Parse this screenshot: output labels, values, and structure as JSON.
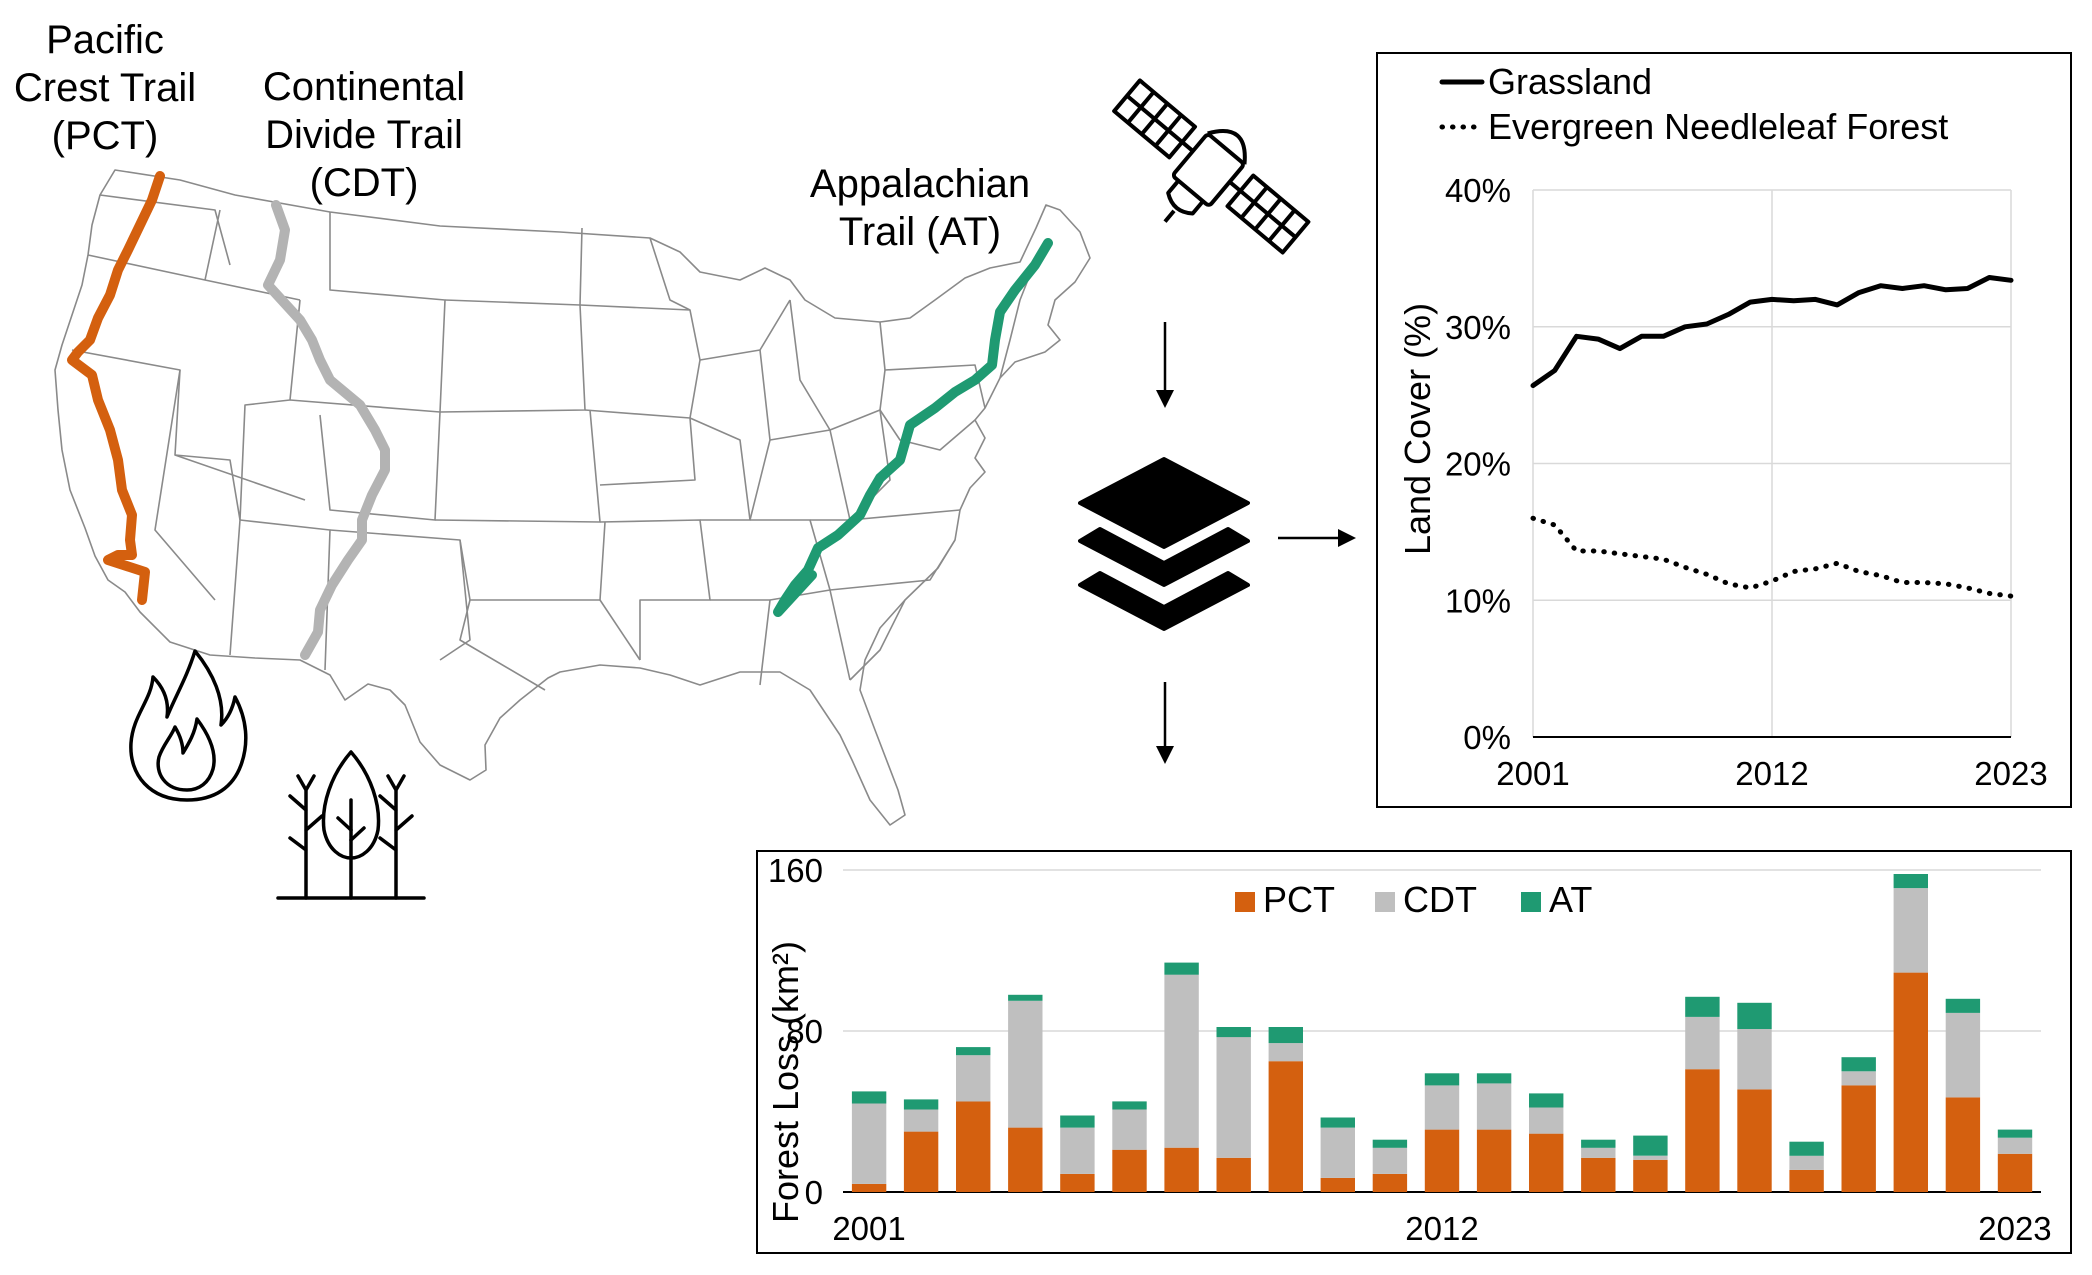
{
  "map": {
    "trails": [
      {
        "id": "pct",
        "label_lines": [
          "Pacific",
          "Crest Trail",
          "(PCT)"
        ],
        "color": "#d4600f"
      },
      {
        "id": "cdt",
        "label_lines": [
          "Continental",
          "Divide Trail",
          "(CDT)"
        ],
        "color": "#b3b3b3"
      },
      {
        "id": "at",
        "label_lines": [
          "Appalachian",
          "Trail (AT)"
        ],
        "color": "#1f9a72"
      }
    ],
    "icons": [
      "fire-icon",
      "forest-icon",
      "satellite-icon",
      "layers-icon",
      "arrow-down-icon",
      "arrow-right-icon"
    ]
  },
  "line_chart": {
    "chart_data": {
      "type": "line",
      "x": [
        2001,
        2002,
        2003,
        2004,
        2005,
        2006,
        2007,
        2008,
        2009,
        2010,
        2011,
        2012,
        2013,
        2014,
        2015,
        2016,
        2017,
        2018,
        2019,
        2020,
        2021,
        2022,
        2023
      ],
      "series": [
        {
          "name": "Grassland",
          "style": "solid",
          "values": [
            25.7,
            26.8,
            29.3,
            29.1,
            28.4,
            29.3,
            29.3,
            30.0,
            30.2,
            30.9,
            31.8,
            32.0,
            31.9,
            32.0,
            31.6,
            32.5,
            33.0,
            32.8,
            33.0,
            32.7,
            32.8,
            33.6,
            33.4
          ]
        },
        {
          "name": "Evergreen Needleleaf Forest",
          "style": "dotted",
          "values": [
            16.0,
            15.5,
            13.6,
            13.6,
            13.4,
            13.2,
            13.0,
            12.4,
            11.9,
            11.2,
            10.9,
            11.4,
            12.1,
            12.3,
            12.7,
            12.1,
            11.8,
            11.3,
            11.3,
            11.2,
            10.9,
            10.5,
            10.3
          ]
        }
      ],
      "ylabel": "Land Cover (%)",
      "ylim": [
        0,
        40
      ],
      "yticks": [
        "0%",
        "10%",
        "20%",
        "30%",
        "40%"
      ],
      "xticks": [
        "2001",
        "2012",
        "2023"
      ],
      "grid": true,
      "legend": "top"
    }
  },
  "bar_chart": {
    "chart_data": {
      "type": "bar",
      "stacked": true,
      "categories": [
        "2001",
        "2002",
        "2003",
        "2004",
        "2005",
        "2006",
        "2007",
        "2008",
        "2009",
        "2010",
        "2011",
        "2012",
        "2013",
        "2014",
        "2015",
        "2016",
        "2017",
        "2018",
        "2019",
        "2020",
        "2021",
        "2022",
        "2023"
      ],
      "series": [
        {
          "name": "PCT",
          "color": "#d4600f",
          "values": [
            4,
            30,
            45,
            32,
            9,
            21,
            22,
            17,
            65,
            7,
            9,
            31,
            31,
            29,
            17,
            16,
            61,
            51,
            11,
            53,
            109,
            47,
            19
          ]
        },
        {
          "name": "CDT",
          "color": "#bfbfbf",
          "values": [
            40,
            11,
            23,
            63,
            23,
            20,
            86,
            60,
            9,
            25,
            13,
            22,
            23,
            13,
            5,
            2,
            26,
            30,
            7,
            7,
            42,
            42,
            8
          ]
        },
        {
          "name": "AT",
          "color": "#1f9a72",
          "values": [
            6,
            5,
            4,
            3,
            6,
            4,
            6,
            5,
            8,
            5,
            4,
            6,
            5,
            7,
            4,
            10,
            10,
            13,
            7,
            7,
            7,
            7,
            4
          ]
        }
      ],
      "ylabel": "Forest Loss (km²)",
      "ylim": [
        0,
        160
      ],
      "yticks": [
        "0",
        "80",
        "160"
      ],
      "xticks": [
        "2001",
        "2012",
        "2023"
      ],
      "grid": true,
      "legend": "top"
    }
  }
}
